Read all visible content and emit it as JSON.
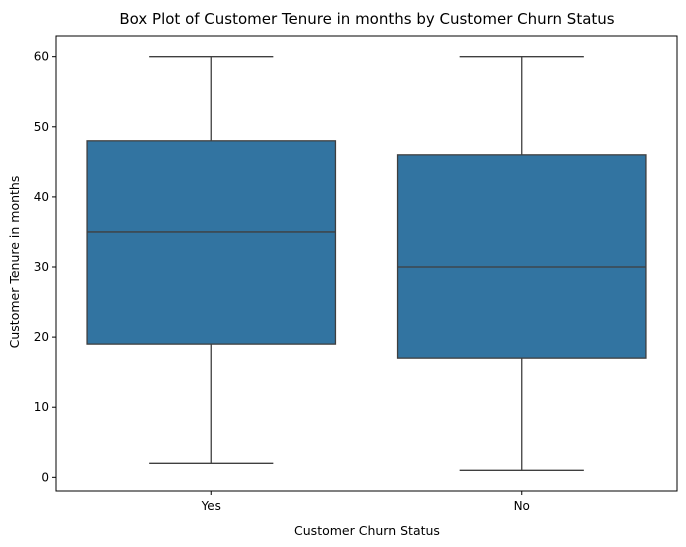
{
  "chart_data": {
    "type": "box",
    "title": "Box Plot of Customer Tenure in months by Customer Churn Status",
    "xlabel": "Customer Churn Status",
    "ylabel": "Customer Tenure in months",
    "categories": [
      "Yes",
      "No"
    ],
    "boxes": [
      {
        "category": "Yes",
        "whisker_low": 2,
        "q1": 19,
        "median": 35,
        "q3": 48,
        "whisker_high": 60
      },
      {
        "category": "No",
        "whisker_low": 1,
        "q1": 17,
        "median": 30,
        "q3": 46,
        "whisker_high": 60
      }
    ],
    "ylim": [
      -1.95,
      62.95
    ],
    "yticks": [
      0,
      10,
      20,
      30,
      40,
      50,
      60
    ],
    "grid": false,
    "colors": {
      "box_fill": "#3274a1",
      "line": "#3f3f3f",
      "axis": "#000000"
    }
  }
}
